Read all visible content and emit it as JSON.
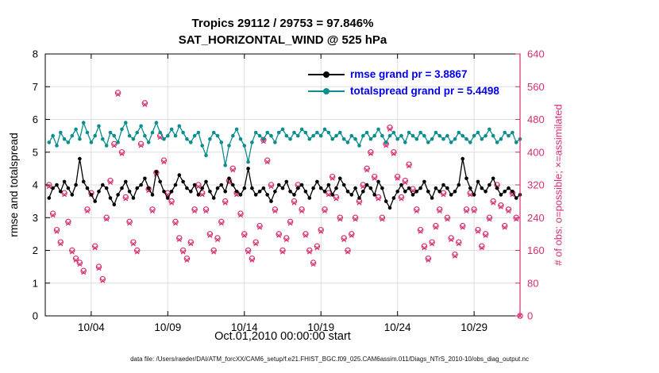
{
  "title": {
    "line1": "Tropics 29112 / 29753 = 97.846%",
    "line2": "SAT_HORIZONTAL_WIND @ 525 hPa"
  },
  "caption": "data file: /Users/raeder/DAI/ATM_forcXX/CAM6_setup/f.e21.FHIST_BGC.f09_025.CAM6assim.011/Diags_NTrS_2010-10/obs_diag_output.nc",
  "chart_data": {
    "type": "line",
    "xlabel": "Oct.01,2010 00:00:00 start",
    "x_start_days": 0,
    "x_end_days": 31,
    "x_step_days": 0.25,
    "xticks": [
      {
        "t": 3,
        "label": "10/04"
      },
      {
        "t": 8,
        "label": "10/09"
      },
      {
        "t": 13,
        "label": "10/14"
      },
      {
        "t": 18,
        "label": "10/19"
      },
      {
        "t": 23,
        "label": "10/24"
      },
      {
        "t": 28,
        "label": "10/29"
      }
    ],
    "left_axis": {
      "label": "rmse and totalspread",
      "min": 0,
      "max": 8,
      "tick_step": 1,
      "color": "#000000"
    },
    "right_axis": {
      "label": "# of obs: o=possible; ×=assimilated",
      "min": 0,
      "max": 640,
      "tick_step": 80,
      "color": "#d92d6f"
    },
    "grid": true,
    "legend_text_color": "#0000ee",
    "legend_position": "top-right-inside",
    "series": [
      {
        "name": "rmse",
        "legend": "rmse grand pr = 3.8867",
        "grand_mean": 3.8867,
        "color": "#000000",
        "axis": "left",
        "values": [
          3.6,
          3.9,
          4.0,
          3.8,
          4.1,
          3.9,
          3.7,
          4.0,
          4.8,
          4.1,
          3.9,
          3.7,
          3.5,
          3.8,
          4.0,
          3.9,
          3.6,
          3.4,
          3.7,
          3.9,
          4.1,
          3.8,
          3.6,
          3.9,
          4.0,
          4.2,
          3.9,
          3.7,
          4.4,
          4.1,
          3.8,
          3.6,
          3.8,
          4.0,
          4.3,
          4.1,
          3.9,
          3.8,
          4.0,
          3.7,
          3.9,
          4.1,
          3.8,
          3.6,
          3.9,
          4.0,
          3.8,
          4.2,
          4.0,
          3.8,
          3.7,
          3.9,
          4.5,
          3.9,
          3.7,
          3.8,
          3.9,
          3.7,
          3.5,
          3.8,
          4.0,
          3.9,
          4.1,
          3.8,
          3.7,
          3.9,
          4.0,
          3.8,
          3.6,
          3.9,
          4.1,
          3.9,
          3.8,
          4.0,
          3.7,
          3.9,
          4.2,
          4.0,
          3.8,
          3.7,
          3.9,
          3.6,
          3.8,
          4.0,
          3.9,
          3.7,
          4.1,
          3.9,
          3.5,
          3.3,
          3.6,
          3.8,
          4.0,
          3.8,
          3.9,
          3.7,
          3.8,
          3.9,
          4.1,
          3.8,
          3.6,
          3.9,
          3.8,
          4.0,
          3.9,
          3.7,
          3.8,
          4.0,
          4.8,
          4.2,
          3.9,
          3.7,
          4.1,
          3.9,
          3.8,
          4.0,
          4.2,
          3.9,
          3.7,
          3.8,
          3.9,
          3.8,
          3.6,
          3.7
        ]
      },
      {
        "name": "totalspread",
        "legend": "totalspread grand pr = 5.4498",
        "grand_mean": 5.4498,
        "color": "#0c8d8e",
        "axis": "left",
        "values": [
          5.3,
          5.5,
          5.2,
          5.6,
          5.4,
          5.3,
          5.5,
          5.7,
          5.4,
          5.9,
          5.6,
          5.3,
          5.5,
          5.8,
          5.4,
          5.2,
          5.6,
          5.5,
          5.3,
          5.7,
          5.9,
          5.5,
          5.4,
          5.6,
          5.8,
          5.5,
          5.3,
          5.6,
          5.9,
          5.6,
          5.4,
          5.5,
          5.7,
          5.5,
          5.8,
          5.6,
          5.4,
          5.3,
          5.5,
          5.6,
          5.2,
          4.9,
          5.4,
          5.6,
          5.5,
          5.3,
          4.6,
          5.2,
          5.5,
          5.7,
          5.4,
          5.2,
          4.7,
          5.3,
          5.6,
          5.5,
          5.4,
          5.6,
          5.5,
          5.3,
          5.6,
          5.7,
          5.5,
          5.4,
          5.6,
          5.5,
          5.7,
          5.6,
          5.4,
          5.5,
          5.6,
          5.5,
          5.7,
          5.6,
          5.4,
          5.5,
          5.6,
          5.4,
          5.3,
          5.5,
          5.4,
          5.2,
          5.5,
          5.6,
          5.4,
          5.5,
          5.7,
          5.5,
          5.3,
          5.5,
          5.6,
          5.4,
          5.5,
          5.3,
          5.6,
          5.5,
          5.4,
          5.6,
          5.5,
          5.3,
          5.4,
          5.6,
          5.5,
          5.4,
          5.5,
          5.3,
          5.4,
          5.6,
          5.5,
          5.4,
          5.3,
          5.5,
          5.6,
          5.4,
          5.5,
          5.7,
          5.5,
          5.3,
          5.4,
          5.6,
          5.5,
          5.6,
          5.3,
          5.4
        ]
      }
    ],
    "obs": {
      "marker_color": "#d92d6f",
      "possible_marker": "circle",
      "assimilated_marker": "x",
      "possible": [
        320,
        250,
        210,
        180,
        300,
        230,
        160,
        140,
        130,
        110,
        260,
        300,
        170,
        120,
        90,
        240,
        330,
        420,
        545,
        400,
        290,
        230,
        180,
        160,
        420,
        520,
        310,
        260,
        350,
        440,
        380,
        300,
        280,
        230,
        190,
        160,
        140,
        180,
        260,
        320,
        300,
        260,
        200,
        160,
        190,
        230,
        280,
        330,
        360,
        300,
        250,
        200,
        160,
        140,
        180,
        220,
        430,
        380,
        320,
        260,
        200,
        160,
        190,
        230,
        280,
        320,
        260,
        200,
        160,
        130,
        170,
        210,
        260,
        300,
        340,
        290,
        240,
        190,
        160,
        200,
        240,
        280,
        320,
        360,
        400,
        340,
        290,
        240,
        420,
        460,
        400,
        340,
        290,
        330,
        370,
        310,
        260,
        210,
        170,
        140,
        180,
        220,
        260,
        300,
        240,
        190,
        150,
        180,
        220,
        260,
        300,
        260,
        210,
        170,
        200,
        240,
        280,
        320,
        270,
        220,
        260,
        300,
        240,
        0
      ],
      "assimilated": [
        316,
        246,
        206,
        176,
        296,
        226,
        156,
        136,
        126,
        106,
        256,
        296,
        166,
        116,
        86,
        236,
        326,
        416,
        541,
        396,
        286,
        226,
        176,
        156,
        416,
        516,
        306,
        256,
        346,
        436,
        376,
        296,
        276,
        226,
        186,
        156,
        136,
        176,
        256,
        316,
        296,
        256,
        196,
        156,
        186,
        226,
        276,
        326,
        356,
        296,
        246,
        196,
        156,
        136,
        176,
        216,
        426,
        376,
        316,
        256,
        196,
        156,
        186,
        226,
        276,
        316,
        256,
        196,
        156,
        126,
        166,
        206,
        256,
        296,
        336,
        286,
        236,
        186,
        156,
        196,
        236,
        276,
        316,
        356,
        396,
        336,
        286,
        236,
        416,
        456,
        396,
        336,
        286,
        326,
        366,
        306,
        256,
        206,
        166,
        136,
        176,
        216,
        256,
        296,
        236,
        186,
        146,
        176,
        216,
        256,
        296,
        256,
        206,
        166,
        196,
        236,
        276,
        316,
        266,
        216,
        256,
        296,
        236,
        0
      ]
    }
  }
}
